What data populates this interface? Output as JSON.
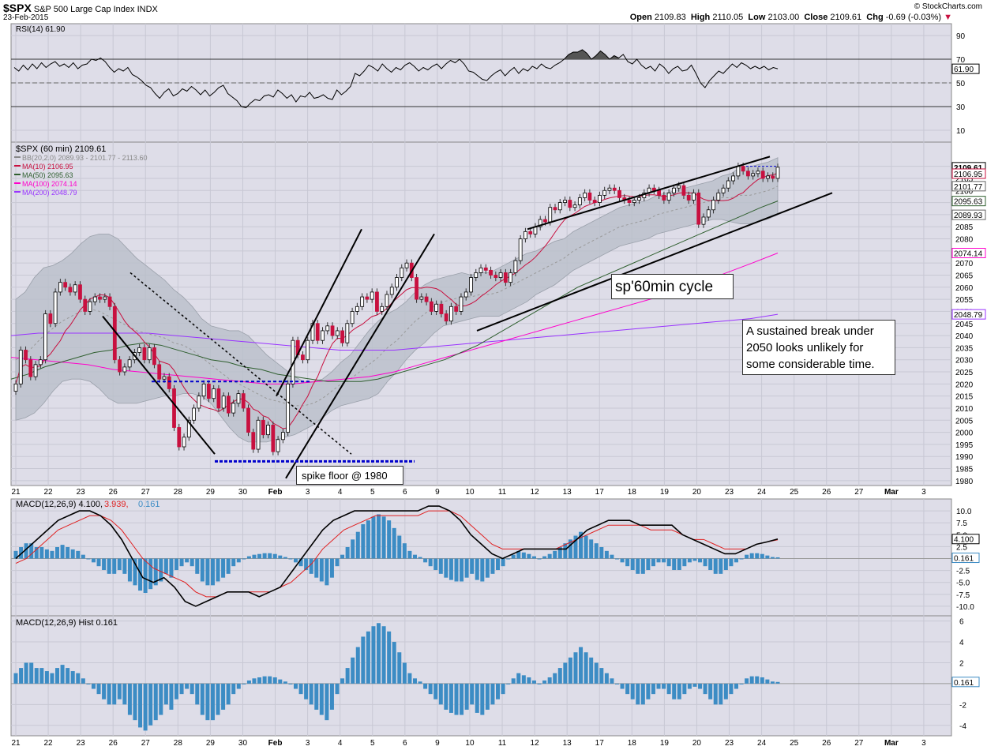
{
  "header": {
    "symbol": "$SPX",
    "name": "S&P 500 Large Cap Index",
    "exchange": "INDX",
    "date": "23-Feb-2015",
    "open_label": "Open",
    "open": "2109.83",
    "high_label": "High",
    "high": "2110.05",
    "low_label": "Low",
    "low": "2103.00",
    "close_label": "Close",
    "close": "2109.61",
    "chg_label": "Chg",
    "chg": "-0.69 (-0.03%)",
    "brand": "© StockCharts.com"
  },
  "annotations": {
    "cycle": "sp'60min cycle",
    "spike": "spike floor @ 1980",
    "sustained": "A sustained break under 2050 looks unlikely for some considerable time."
  },
  "colors": {
    "panel_bg": "#dedde8",
    "grid": "#c8c8d4",
    "up": "#ffffff",
    "down": "#c8103f",
    "wick": "#333333",
    "ma10": "#c8103f",
    "ma50": "#2f5f2f",
    "ma100": "#ff00cc",
    "ma200": "#9933ff",
    "bb_fill": "#b9bfc9",
    "macd": "#000000",
    "signal": "#e02020",
    "hist": "#3c8cc4",
    "rsi": "#000000",
    "blue_line": "#0000cc"
  },
  "chart_data": [
    {
      "type": "line",
      "title": "RSI(14) 61.90",
      "series_name": "RSI(14)",
      "last_value": 61.9,
      "ylim": [
        0,
        100
      ],
      "levels": [
        30,
        50,
        70
      ],
      "yticks": [
        "10",
        "30",
        "50",
        "70",
        "90"
      ],
      "values": [
        63,
        60,
        65,
        61,
        66,
        62,
        67,
        63,
        66,
        68,
        64,
        66,
        63,
        67,
        62,
        65,
        66,
        70,
        69,
        71,
        68,
        63,
        59,
        62,
        60,
        63,
        57,
        55,
        52,
        48,
        46,
        41,
        37,
        42,
        45,
        39,
        41,
        45,
        43,
        47,
        44,
        40,
        44,
        39,
        42,
        46,
        48,
        41,
        38,
        35,
        30,
        29,
        33,
        36,
        35,
        39,
        40,
        38,
        44,
        41,
        37,
        40,
        34,
        39,
        38,
        42,
        37,
        38,
        40,
        37,
        36,
        44,
        40,
        43,
        47,
        58,
        56,
        60,
        65,
        63,
        60,
        66,
        62,
        59,
        63,
        61,
        65,
        67,
        64,
        60,
        63,
        61,
        64,
        66,
        62,
        66,
        69,
        67,
        70,
        66,
        60,
        59,
        56,
        53,
        52,
        56,
        59,
        61,
        56,
        60,
        63,
        58,
        62,
        60,
        64,
        62,
        66,
        63,
        62,
        65,
        67,
        70,
        74,
        76,
        76,
        78,
        75,
        70,
        73,
        77,
        74,
        70,
        73,
        71,
        74,
        68,
        66,
        70,
        65,
        62,
        64,
        60,
        66,
        63,
        58,
        62,
        64,
        60,
        61,
        65,
        58,
        50,
        46,
        52,
        56,
        60,
        58,
        62,
        66,
        63,
        67,
        65,
        62,
        64,
        62,
        64,
        61,
        63,
        61.9
      ],
      "overbought_shade_range": [
        121,
        133
      ]
    },
    {
      "type": "candlestick",
      "title": "$SPX (60 min) 2109.61",
      "ylim": [
        1978,
        2120
      ],
      "y_ticks": [
        1980,
        1985,
        1990,
        1995,
        2000,
        2005,
        2010,
        2015,
        2020,
        2025,
        2030,
        2035,
        2040,
        2045,
        2050,
        2055,
        2060,
        2065,
        2070,
        2075,
        2080,
        2085,
        2090,
        2095,
        2100,
        2105,
        2110
      ],
      "x_labels": [
        "21",
        "22",
        "23",
        "26",
        "27",
        "28",
        "29",
        "30",
        "Feb",
        "3",
        "4",
        "5",
        "6",
        "9",
        "10",
        "11",
        "12",
        "13",
        "17",
        "18",
        "19",
        "20",
        "23",
        "24",
        "25",
        "26",
        "27",
        "Mar",
        "3"
      ],
      "legend": [
        {
          "name": "BB(20,2.0)",
          "values": "2089.93 - 2101.77 - 2113.60"
        },
        {
          "name": "MA(10)",
          "value": "2106.95"
        },
        {
          "name": "MA(50)",
          "value": "2095.63"
        },
        {
          "name": "MA(100)",
          "value": "2074.14"
        },
        {
          "name": "MA(200)",
          "value": "2048.79"
        }
      ],
      "right_value_labels": [
        "2109.61",
        "2106.95",
        "2101.77",
        "2095.63",
        "2089.93",
        "2074.14",
        "2048.79"
      ],
      "closes": [
        2020,
        2034,
        2030,
        2023,
        2028,
        2030,
        2049,
        2045,
        2058,
        2062,
        2060,
        2058,
        2061,
        2055,
        2050,
        2054,
        2056,
        2055,
        2056,
        2052,
        2030,
        2025,
        2027,
        2030,
        2033,
        2035,
        2030,
        2035,
        2028,
        2022,
        2023,
        2018,
        2002,
        1994,
        1998,
        2005,
        2010,
        2015,
        2020,
        2014,
        2018,
        2010,
        2015,
        2008,
        2012,
        2016,
        2010,
        2000,
        1993,
        2005,
        1999,
        2003,
        1992,
        1997,
        2000,
        2020,
        2038,
        2032,
        2030,
        2038,
        2045,
        2038,
        2042,
        2044,
        2040,
        2042,
        2037,
        2045,
        2050,
        2052,
        2056,
        2055,
        2058,
        2050,
        2052,
        2057,
        2060,
        2064,
        2068,
        2070,
        2064,
        2055,
        2056,
        2054,
        2050,
        2053,
        2049,
        2046,
        2052,
        2050,
        2056,
        2058,
        2064,
        2066,
        2068,
        2067,
        2065,
        2064,
        2066,
        2062,
        2066,
        2071,
        2080,
        2083,
        2082,
        2085,
        2088,
        2087,
        2093,
        2092,
        2095,
        2096,
        2093,
        2094,
        2097,
        2099,
        2096,
        2095,
        2098,
        2100,
        2101,
        2100,
        2097,
        2096,
        2095,
        2096,
        2097,
        2099,
        2101,
        2100,
        2098,
        2096,
        2099,
        2101,
        2102,
        2098,
        2096,
        2099,
        2086,
        2089,
        2092,
        2096,
        2099,
        2101,
        2104,
        2106,
        2110,
        2108,
        2106,
        2107,
        2108,
        2105,
        2106,
        2105,
        2109.61
      ],
      "bb_mid": [
        2030,
        2032,
        2036,
        2040,
        2043,
        2046,
        2048,
        2050,
        2051,
        2050,
        2048,
        2046,
        2044,
        2042,
        2041,
        2040,
        2039,
        2037,
        2036,
        2034,
        2031,
        2028,
        2025,
        2022,
        2020,
        2018,
        2016,
        2014,
        2013,
        2012,
        2011,
        2011,
        2012,
        2014,
        2017,
        2020,
        2022,
        2025,
        2028,
        2031,
        2035,
        2038,
        2042,
        2046,
        2049,
        2052,
        2054,
        2055,
        2056,
        2056,
        2057,
        2057,
        2058,
        2060,
        2062,
        2064,
        2066,
        2068,
        2070,
        2072,
        2075,
        2077,
        2079,
        2081,
        2083,
        2085,
        2086,
        2087,
        2088,
        2090,
        2091,
        2092,
        2093,
        2094,
        2095,
        2096,
        2097,
        2097,
        2098,
        2098,
        2099,
        2100,
        2101.77
      ],
      "bb_half_width": [
        25,
        26,
        28,
        28,
        26,
        25,
        26,
        28,
        30,
        32,
        34,
        34,
        32,
        30,
        28,
        26,
        24,
        22,
        20,
        18,
        16,
        16,
        18,
        20,
        22,
        22,
        20,
        18,
        16,
        14,
        12,
        10,
        9,
        8,
        8,
        9,
        10,
        12,
        14,
        15,
        14,
        13,
        12,
        12,
        12,
        11,
        10,
        10,
        10,
        9,
        9,
        9,
        10,
        10,
        10,
        10,
        9,
        9,
        9,
        8,
        8,
        8,
        8,
        8,
        8,
        8,
        8,
        8,
        8,
        8,
        8,
        8,
        8,
        8,
        8,
        8,
        9,
        10,
        11.8
      ],
      "ma50": [
        2022,
        2024,
        2027,
        2029,
        2031,
        2033,
        2034,
        2036,
        2037,
        2036,
        2034,
        2032,
        2030,
        2029,
        2027,
        2026,
        2024,
        2023,
        2022,
        2021,
        2021,
        2021,
        2022,
        2024,
        2026,
        2028,
        2030,
        2033,
        2036,
        2040,
        2044,
        2048,
        2052,
        2056,
        2060,
        2063,
        2066,
        2069,
        2072,
        2075,
        2078,
        2081,
        2084,
        2087,
        2090,
        2093,
        2095.63
      ],
      "ma100": [
        2031,
        2030,
        2029,
        2028,
        2026,
        2025,
        2024,
        2023,
        2022,
        2021,
        2020,
        2020,
        2021,
        2022,
        2023,
        2025,
        2028,
        2031,
        2034,
        2037,
        2040,
        2043,
        2046,
        2049,
        2052,
        2055,
        2058,
        2062,
        2066,
        2070,
        2074.14
      ],
      "ma200": [
        2040,
        2041,
        2041,
        2041,
        2041,
        2041,
        2040,
        2039,
        2038,
        2037,
        2036,
        2035,
        2034,
        2034,
        2034,
        2035,
        2036,
        2037,
        2038,
        2039,
        2040,
        2041,
        2042,
        2043,
        2044,
        2045,
        2046,
        2047,
        2048.79
      ],
      "trendlines": "channel lines, wedge lines and blue support levels at 2021 and 1988",
      "blue_levels": [
        2021,
        1988,
        2110
      ]
    },
    {
      "type": "line",
      "title": "MACD(12,26,9) 4.100, 3.939, 0.161",
      "macd_last": 4.1,
      "signal_last": 3.939,
      "hist_last": 0.161,
      "ylim": [
        -12,
        12.5
      ],
      "y_ticks": [
        10.0,
        7.5,
        5.0,
        2.5,
        -2.5,
        -5.0,
        -7.5,
        -10.0
      ],
      "macd_values": [
        0,
        2,
        4,
        6,
        8,
        9,
        10,
        10,
        9,
        7,
        4,
        0,
        -4,
        -5,
        -4,
        -6,
        -9,
        -10,
        -9,
        -8,
        -7,
        -7,
        -7,
        -8,
        -7,
        -6,
        -3,
        0,
        3,
        6,
        8,
        9,
        10,
        10,
        10,
        10,
        10,
        10,
        10,
        11,
        11,
        10,
        8,
        5,
        3,
        1,
        0,
        1,
        2,
        2,
        2,
        2,
        2,
        4,
        6,
        7,
        8,
        8,
        8,
        7,
        7,
        7,
        7,
        5,
        4,
        3,
        2,
        1,
        1,
        2,
        3,
        3.5,
        4.1
      ],
      "signal_values": [
        -1,
        0,
        2,
        4,
        6,
        7,
        8,
        9,
        9,
        8,
        6,
        3,
        0,
        -2,
        -3,
        -4,
        -5,
        -7,
        -8,
        -8,
        -7,
        -7,
        -7,
        -7,
        -7,
        -6,
        -5,
        -3,
        -1,
        2,
        4,
        6,
        7,
        8,
        9,
        9,
        9,
        9,
        9,
        10,
        10,
        10,
        9,
        7,
        5,
        3,
        2,
        2,
        2,
        2,
        2,
        2,
        3,
        4,
        5,
        6,
        7,
        7,
        7,
        7,
        6,
        6,
        6,
        5,
        4,
        4,
        3,
        2,
        2,
        2,
        3,
        3.5,
        3.939
      ],
      "right_value_labels": [
        "4.100",
        "0.161"
      ]
    },
    {
      "type": "bar",
      "title": "MACD(12,26,9) Hist 0.161",
      "last_value": 0.161,
      "ylim": [
        -5,
        6.5
      ],
      "y_ticks": [
        6,
        4,
        2,
        -2,
        -4
      ],
      "values": [
        1,
        1.5,
        2,
        2,
        1.5,
        1.5,
        1.2,
        1,
        1.5,
        1.8,
        1.5,
        1.2,
        1,
        0.5,
        0,
        -0.5,
        -1,
        -1.5,
        -2,
        -2,
        -1.5,
        -2,
        -3,
        -3.5,
        -4.2,
        -4.5,
        -4,
        -3.5,
        -3,
        -2,
        -2.5,
        -1.5,
        -1,
        -0.5,
        -1,
        -2,
        -3,
        -3.5,
        -3.5,
        -3,
        -2.5,
        -2,
        -1,
        -0.5,
        0,
        0.3,
        0.5,
        0.6,
        0.7,
        0.7,
        0.6,
        0.4,
        0.2,
        0,
        -0.5,
        -1,
        -1.5,
        -2,
        -2.5,
        -3,
        -3.5,
        -2.5,
        -1,
        0.5,
        1.5,
        2.5,
        3.5,
        4.5,
        5,
        5.5,
        5.8,
        5.5,
        5,
        4,
        3,
        2,
        1,
        0.5,
        0.2,
        -0.5,
        -1,
        -1.5,
        -2,
        -2.5,
        -2.8,
        -3,
        -3,
        -2.5,
        -2,
        -2.8,
        -3,
        -2.5,
        -2,
        -1.5,
        -1,
        0,
        0.5,
        1,
        0.8,
        0.6,
        0.3,
        0,
        0.3,
        0.6,
        1,
        1.5,
        2,
        2.5,
        3,
        3.5,
        3,
        2.5,
        2,
        1.5,
        1,
        0.5,
        0,
        -0.5,
        -1,
        -1.5,
        -2,
        -2,
        -1.5,
        -1,
        -0.5,
        -0.5,
        -1,
        -1.5,
        -1.5,
        -1,
        -0.5,
        -0.3,
        -0.5,
        -1,
        -1.5,
        -2,
        -2,
        -1.5,
        -1,
        -0.5,
        0,
        0.5,
        0.7,
        0.7,
        0.6,
        0.4,
        0.2,
        0.161
      ],
      "right_value_labels": [
        "0.161"
      ]
    }
  ]
}
